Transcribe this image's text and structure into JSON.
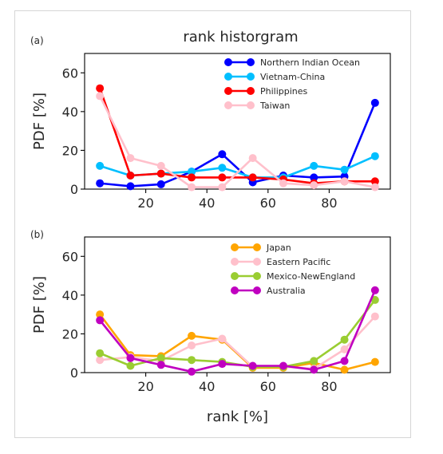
{
  "chart_data": [
    {
      "type": "line",
      "panel_label": "(a)",
      "title": "rank historgram",
      "xlabel": "",
      "ylabel": "PDF [%]",
      "xlim": [
        0,
        100
      ],
      "ylim": [
        0,
        70
      ],
      "xticks": [
        20,
        40,
        60,
        80
      ],
      "yticks": [
        0,
        20,
        40,
        60
      ],
      "x": [
        5,
        15,
        25,
        35,
        45,
        55,
        65,
        75,
        85,
        95
      ],
      "legend_position": "top-right",
      "series": [
        {
          "name": "Northern Indian Ocean",
          "color": "#0000ff",
          "values": [
            3,
            1.5,
            2.5,
            9,
            18,
            3.5,
            7,
            6,
            6.5,
            44.5
          ]
        },
        {
          "name": "Vietnam-China",
          "color": "#00bfff",
          "values": [
            12,
            7,
            8,
            9,
            11,
            6,
            6,
            12,
            10,
            17
          ]
        },
        {
          "name": "Philippines",
          "color": "#ff0000",
          "values": [
            52,
            7,
            8,
            6,
            6,
            6,
            5,
            3,
            4,
            4
          ]
        },
        {
          "name": "Taiwan",
          "color": "#ffc0cb",
          "values": [
            48,
            16,
            12,
            1,
            1,
            16,
            3,
            2,
            4,
            1
          ]
        }
      ]
    },
    {
      "type": "line",
      "panel_label": "(b)",
      "title": "",
      "xlabel": "rank [%]",
      "ylabel": "PDF [%]",
      "xlim": [
        0,
        100
      ],
      "ylim": [
        0,
        70
      ],
      "xticks": [
        20,
        40,
        60,
        80
      ],
      "yticks": [
        0,
        20,
        40,
        60
      ],
      "x": [
        5,
        15,
        25,
        35,
        45,
        55,
        65,
        75,
        85,
        95
      ],
      "legend_position": "top-right",
      "series": [
        {
          "name": "Japan",
          "color": "#ffa500",
          "values": [
            30,
            9,
            8.5,
            19,
            17,
            2.5,
            2.5,
            5,
            1.5,
            5.5
          ]
        },
        {
          "name": "Eastern Pacific",
          "color": "#ffc0cb",
          "values": [
            6.5,
            8,
            6,
            14,
            17.5,
            3,
            3,
            2,
            12,
            29
          ]
        },
        {
          "name": "Mexico-NewEngland",
          "color": "#9acd32",
          "values": [
            10,
            3.5,
            7.5,
            6.5,
            5.5,
            3,
            3,
            6,
            17,
            37.5
          ]
        },
        {
          "name": "Australia",
          "color": "#c000c0",
          "values": [
            27,
            7.5,
            4,
            0.5,
            4.5,
            3.5,
            3.5,
            1.5,
            6,
            42.5
          ]
        }
      ]
    }
  ]
}
